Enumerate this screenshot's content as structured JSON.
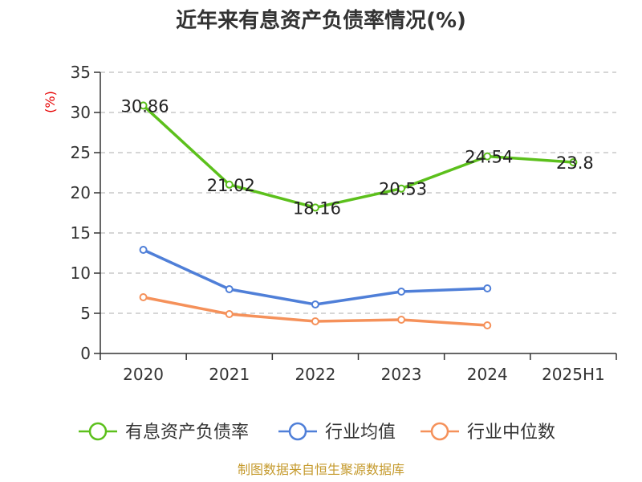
{
  "chart_data": {
    "type": "line",
    "title": "近年来有息资产负债率情况(%)",
    "ylabel": "(%)",
    "categories": [
      "2020",
      "2021",
      "2022",
      "2023",
      "2024",
      "2025H1"
    ],
    "ylim": [
      0,
      35
    ],
    "yticks": [
      "0",
      "5",
      "10",
      "15",
      "20",
      "25",
      "30",
      "35"
    ],
    "grid": true,
    "legend_position": "bottom",
    "series": [
      {
        "name": "有息资产负债率",
        "color": "#5cc01c",
        "values": [
          30.86,
          21.02,
          18.16,
          20.53,
          24.54,
          23.8
        ],
        "labels": [
          "30.86",
          "21.02",
          "18.16",
          "20.53",
          "24.54",
          "23.8"
        ]
      },
      {
        "name": "行业均值",
        "color": "#4f7fd8",
        "values": [
          12.9,
          8.0,
          6.1,
          7.7,
          8.1,
          null
        ]
      },
      {
        "name": "行业中位数",
        "color": "#f5915a",
        "values": [
          7.0,
          4.9,
          4.0,
          4.2,
          3.5,
          null
        ]
      }
    ]
  },
  "source": "制图数据来自恒生聚源数据库"
}
